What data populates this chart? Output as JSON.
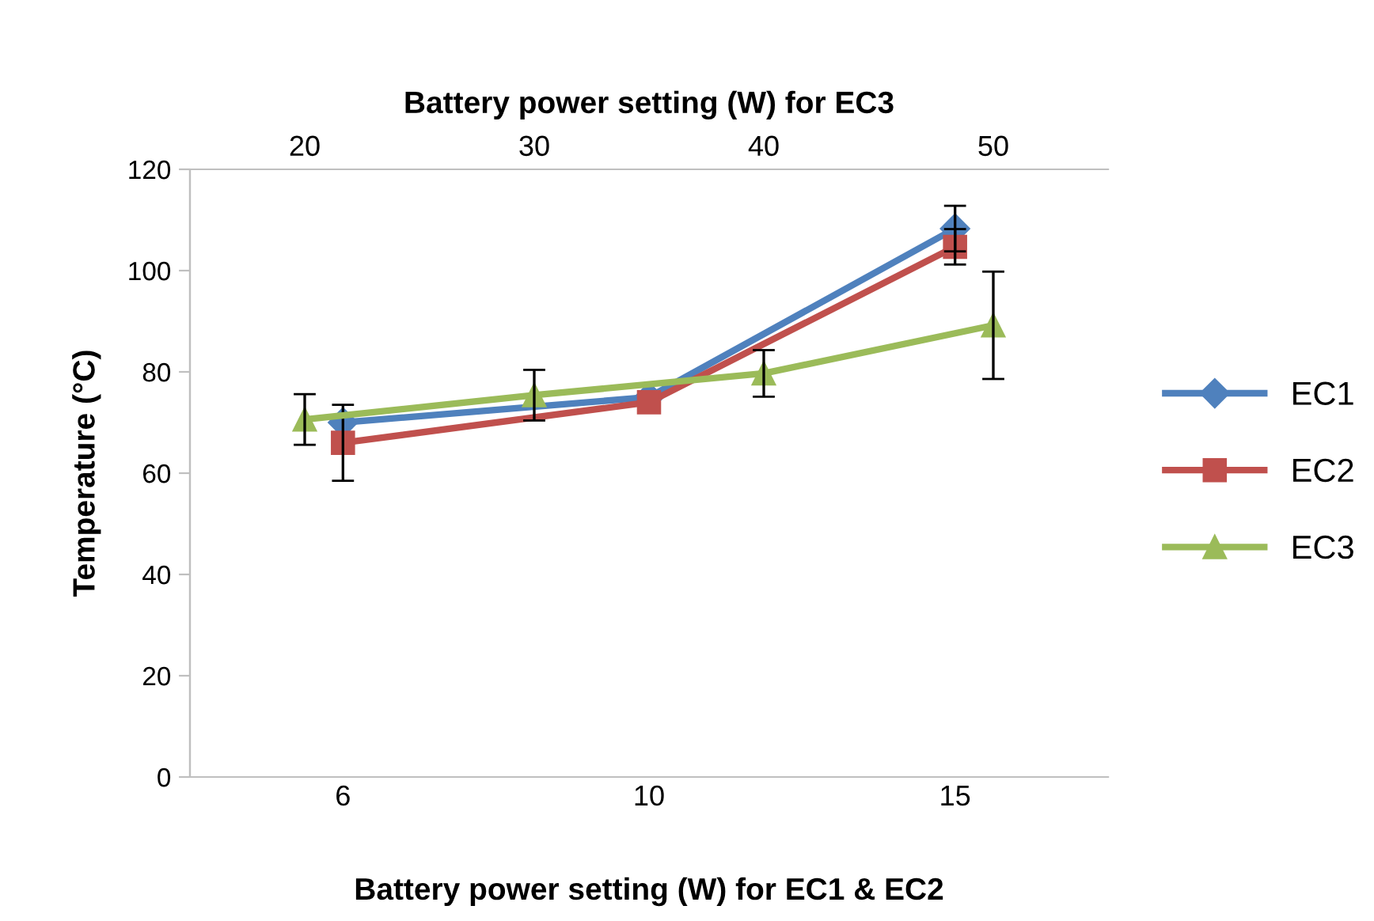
{
  "chart_data": {
    "type": "line",
    "categories": [
      "6",
      "10",
      "15"
    ],
    "xlabel": "Battery power setting (W) for EC1 & EC2",
    "x2label": "Battery power setting (W) for EC3",
    "x2lim": [
      15,
      55
    ],
    "x2ticks": [
      20,
      30,
      40,
      50
    ],
    "ylabel": "Temperature (°C)",
    "ylim": [
      0,
      120
    ],
    "yticks": [
      0,
      20,
      40,
      60,
      80,
      100,
      120
    ],
    "grid": false,
    "legend": "right",
    "series": [
      {
        "name": "EC1",
        "color": "#4f81bd",
        "marker": "diamond",
        "values": [
          70,
          75,
          108.3
        ],
        "errors": [
          null,
          null,
          4.5
        ]
      },
      {
        "name": "EC2",
        "color": "#c0504d",
        "marker": "square",
        "values": [
          66,
          74,
          104.7
        ],
        "errors": [
          7.5,
          null,
          3.5
        ]
      },
      {
        "name": "EC3",
        "color": "#9bbb59",
        "marker": "triangle",
        "axis": "x2",
        "x": [
          20,
          30,
          40,
          50
        ],
        "values": [
          70.6,
          75.4,
          79.7,
          89.2
        ],
        "errors": [
          5,
          5,
          4.6,
          10.6
        ]
      }
    ]
  }
}
